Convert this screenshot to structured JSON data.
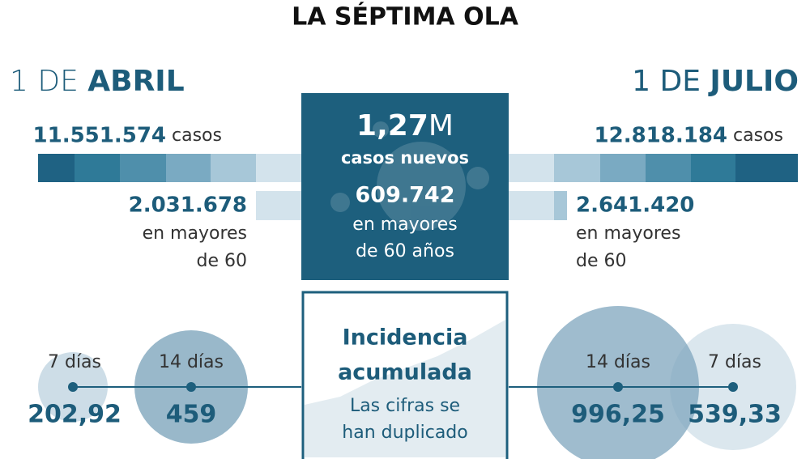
{
  "title": "LA SÉPTIMA OLA",
  "left": {
    "date_prefix": "1 DE",
    "date_month": "ABRIL",
    "cases": "11.551.574",
    "cases_label": "casos",
    "over60": "2.031.678",
    "over60_label": [
      "en mayores",
      "de 60"
    ]
  },
  "center": {
    "total": "1,27",
    "unit": "M",
    "total_label": "casos nuevos",
    "over60": "609.742",
    "over60_label": [
      "en mayores",
      "de 60 años"
    ]
  },
  "right": {
    "date_prefix": "1 DE",
    "date_month": "JULIO",
    "cases": "12.818.184",
    "cases_label": "casos",
    "over60": "2.641.420",
    "over60_label": [
      "en mayores",
      "de 60"
    ]
  },
  "incidence": {
    "title": [
      "Incidencia",
      "acumulada"
    ],
    "subtitle": [
      "Las cifras se",
      "han duplicado"
    ],
    "left": [
      {
        "label": "7 días",
        "value": "202,92"
      },
      {
        "label": "14 días",
        "value": "459"
      }
    ],
    "right": [
      {
        "label": "14 días",
        "value": "996,25"
      },
      {
        "label": "7 días",
        "value": "539,33"
      }
    ]
  }
}
